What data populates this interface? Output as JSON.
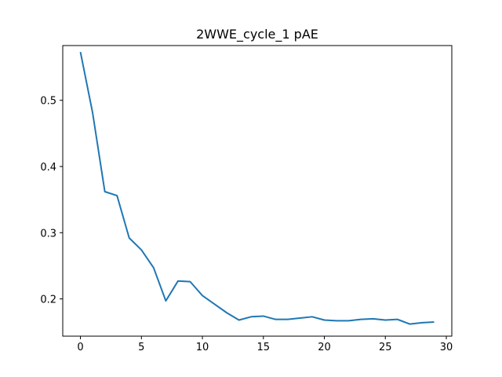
{
  "chart_data": {
    "type": "line",
    "title": "2WWE_cycle_1 pAE",
    "xlabel": "",
    "ylabel": "",
    "xlim": [
      -1.45,
      30.45
    ],
    "ylim": [
      0.1437,
      0.5827
    ],
    "xticks": [
      0,
      5,
      10,
      15,
      20,
      25,
      30
    ],
    "yticks": [
      0.2,
      0.3,
      0.4,
      0.5
    ],
    "grid": false,
    "line_color": "#1f77b4",
    "series": [
      {
        "x": [
          0,
          1,
          2,
          3,
          4,
          5,
          6,
          7,
          8,
          9,
          10,
          11,
          12,
          13,
          14,
          15,
          16,
          17,
          18,
          19,
          20,
          21,
          22,
          23,
          24,
          25,
          26,
          27,
          28,
          29
        ],
        "values": [
          0.573,
          0.481,
          0.362,
          0.356,
          0.292,
          0.274,
          0.247,
          0.197,
          0.227,
          0.226,
          0.205,
          0.192,
          0.179,
          0.168,
          0.173,
          0.174,
          0.169,
          0.169,
          0.171,
          0.173,
          0.168,
          0.167,
          0.167,
          0.169,
          0.17,
          0.168,
          0.169,
          0.162,
          0.164,
          0.165
        ]
      }
    ]
  }
}
